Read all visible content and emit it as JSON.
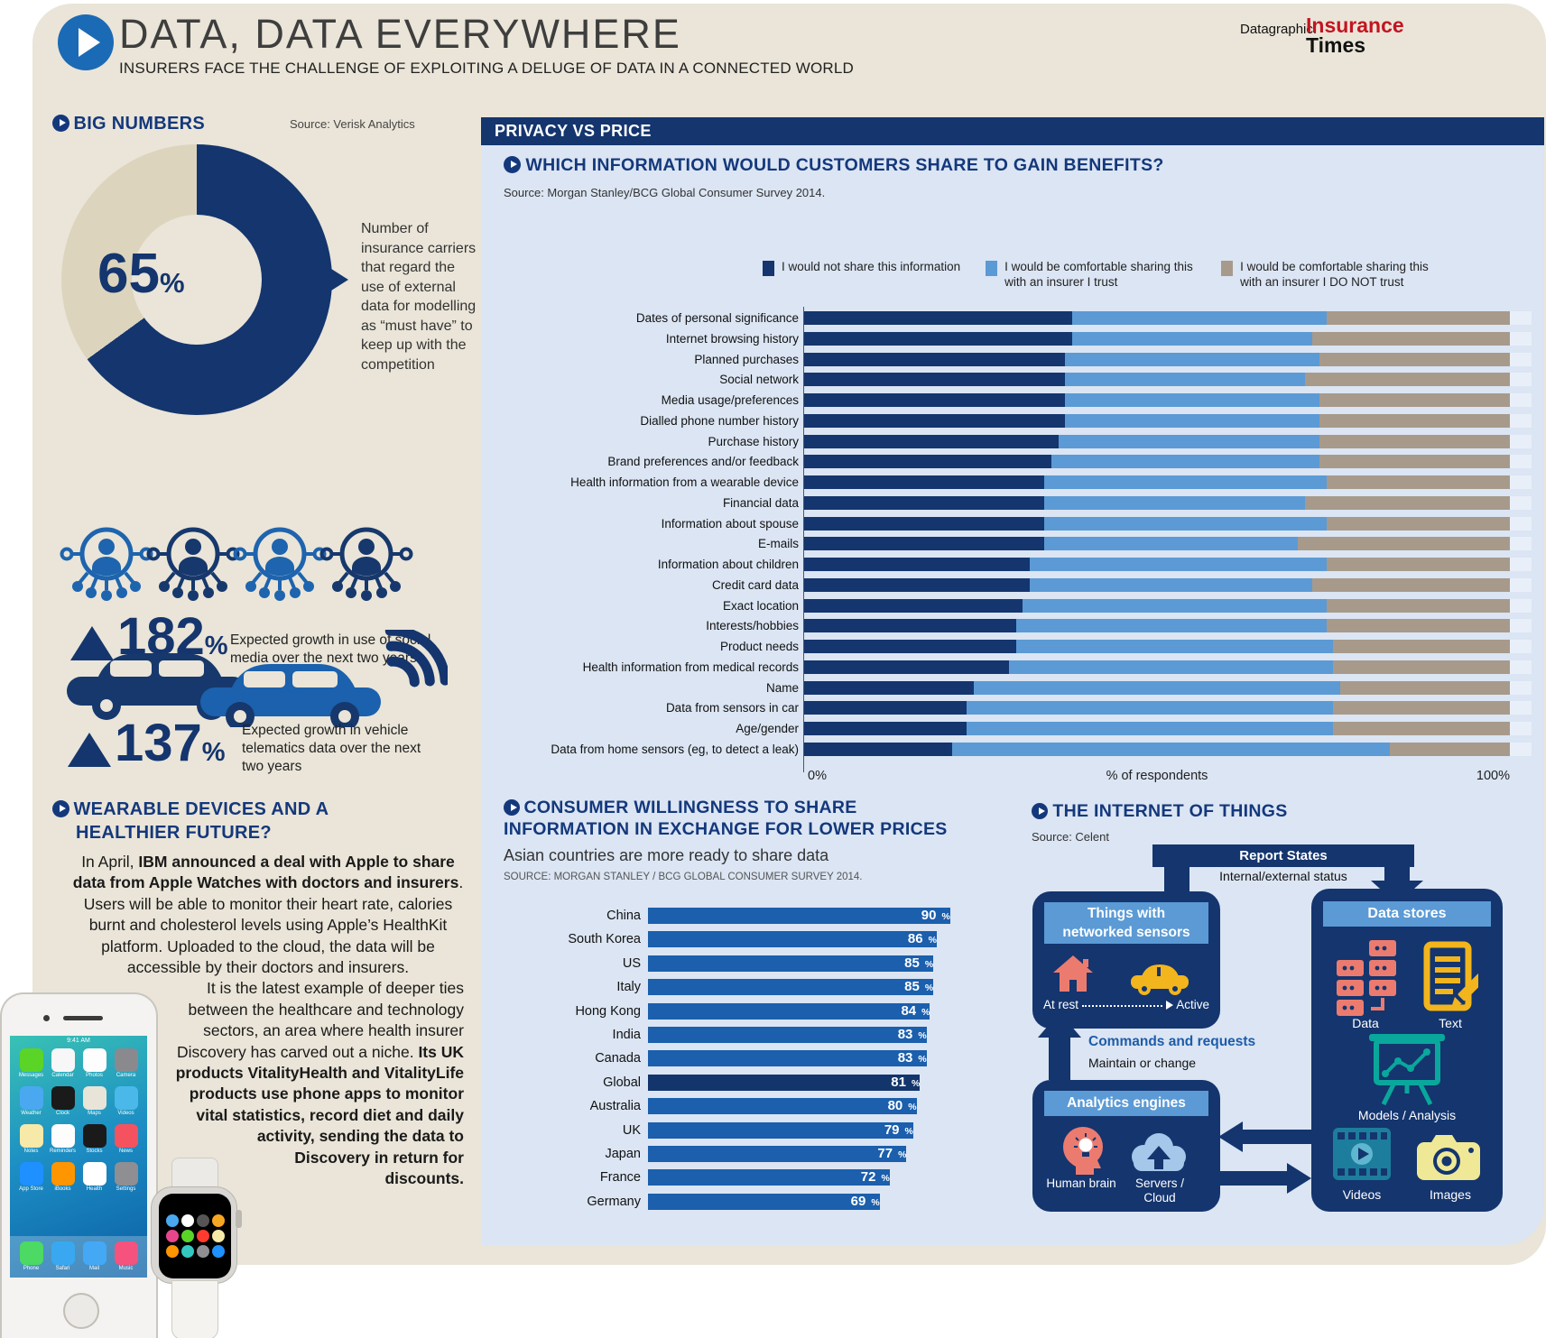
{
  "header": {
    "title": "DATA, DATA EVERYWHERE",
    "subtitle": "INSURERS FACE THE CHALLENGE OF EXPLOITING A DELUGE OF DATA IN A CONNECTED WORLD",
    "datagraphic_label": "Datagraphic:",
    "brand": {
      "line1": "Insurance",
      "line2": "Times"
    }
  },
  "big_numbers": {
    "heading": "BIG NUMBERS",
    "source": "Source: Verisk Analytics",
    "donut": {
      "value": "65",
      "unit": "%",
      "description": "Number of insurance carriers that regard the use of external data for modelling as “must have” to keep up with the competition"
    },
    "social": {
      "value": "182",
      "unit": "%",
      "description": "Expected growth in use of social media over the next two years"
    },
    "telematics": {
      "value": "137",
      "unit": "%",
      "description": "Expected growth in vehicle telematics data over the next two years"
    }
  },
  "wearable": {
    "heading_line1": "WEARABLE DEVICES AND A",
    "heading_line2": "HEALTHIER FUTURE?",
    "p1a": "In April, ",
    "p1b": "IBM announced a deal with Apple to share data from Apple Watches with doctors and insurers",
    "p1c": ". Users will be able to monitor their heart rate, calories burnt and cholesterol levels using Apple’s HealthKit platform. Uploaded to the cloud, the data will be accessible by their doctors and insurers.",
    "p2a": "It is the latest example of deeper ties between the healthcare and technology sectors, an area where health insurer Discovery has carved out a niche. ",
    "p2b": "Its UK products VitalityHealth and VitalityLife products use phone apps to monitor vital statistics, record diet and daily activity, sending the data to Discovery in return for discounts."
  },
  "phone": {
    "status_time": "9:41 AM",
    "apps": [
      {
        "label": "Messages",
        "color": "#5ad427"
      },
      {
        "label": "Calendar",
        "color": "#f7f7f7"
      },
      {
        "label": "Photos",
        "color": "#fdfdfd"
      },
      {
        "label": "Camera",
        "color": "#8a8a8e"
      },
      {
        "label": "Weather",
        "color": "#4aa8f0"
      },
      {
        "label": "Clock",
        "color": "#1a1a1a"
      },
      {
        "label": "Maps",
        "color": "#e8e4d8"
      },
      {
        "label": "Videos",
        "color": "#4ab8e8"
      },
      {
        "label": "Notes",
        "color": "#f7e9a8"
      },
      {
        "label": "Reminders",
        "color": "#fdfdfd"
      },
      {
        "label": "Stocks",
        "color": "#1a1a1a"
      },
      {
        "label": "News",
        "color": "#f5525f"
      },
      {
        "label": "App Store",
        "color": "#1e90ff"
      },
      {
        "label": "iBooks",
        "color": "#ff9500"
      },
      {
        "label": "Health",
        "color": "#ffffff"
      },
      {
        "label": "Settings",
        "color": "#8e8e93"
      }
    ],
    "dock": [
      {
        "label": "Phone",
        "color": "#4cd964"
      },
      {
        "label": "Safari",
        "color": "#3aa8f0"
      },
      {
        "label": "Mail",
        "color": "#44a8f5"
      },
      {
        "label": "Music",
        "color": "#f5527d"
      }
    ]
  },
  "privacy_panel": {
    "banner": "PRIVACY VS PRICE",
    "heading": "WHICH INFORMATION WOULD CUSTOMERS SHARE TO GAIN BENEFITS?",
    "source": "Source: Morgan Stanley/BCG Global Consumer Survey 2014.",
    "legend": [
      {
        "label": "I would not share this information",
        "color": "#14356e"
      },
      {
        "label": "I would be comfortable sharing this with an insurer I trust",
        "color": "#5b9ad5"
      },
      {
        "label": "I would be comfortable sharing this with an insurer I DO NOT trust",
        "color": "#a79a8b"
      }
    ],
    "axis": {
      "left": "0%",
      "center": "% of respondents",
      "right": "100%"
    }
  },
  "willingness": {
    "heading_line1": "CONSUMER WILLINGNESS TO SHARE",
    "heading_line2": "INFORMATION IN EXCHANGE FOR LOWER PRICES",
    "subtitle": "Asian countries are more ready to share data",
    "source": "SOURCE: MORGAN STANLEY / BCG GLOBAL CONSUMER SURVEY 2014."
  },
  "iot": {
    "heading": "THE INTERNET OF THINGS",
    "source": "Source: Celent",
    "report_states": {
      "label": "Report States",
      "sub": "Internal/external status"
    },
    "commands": {
      "label": "Commands and requests",
      "sub": "Maintain or change"
    },
    "things": {
      "title_line1": "Things with",
      "title_line2": "networked sensors",
      "at_rest": "At rest",
      "active": "Active"
    },
    "analytics": {
      "title": "Analytics engines",
      "items": [
        "Human brain",
        "Servers / Cloud"
      ]
    },
    "data_stores": {
      "title": "Data stores",
      "items": [
        "Data",
        "Text",
        "Models / Analysis",
        "Videos",
        "Images"
      ]
    }
  },
  "chart_data": [
    {
      "id": "big-number-donut",
      "type": "pie",
      "title": "BIG NUMBERS",
      "labels": [
        "Carriers regarding external data as must-have",
        "Other carriers"
      ],
      "values": [
        65,
        35
      ],
      "colors": [
        "#14356e",
        "#ddd4bd"
      ],
      "center_label": "65%"
    },
    {
      "id": "privacy-share-stacked",
      "type": "bar",
      "stacked": true,
      "title": "WHICH INFORMATION WOULD CUSTOMERS SHARE TO GAIN BENEFITS?",
      "xlabel": "% of respondents",
      "xlim": [
        0,
        100
      ],
      "legend_position": "top",
      "categories": [
        "Dates of personal significance",
        "Internet browsing history",
        "Planned purchases",
        "Social network",
        "Media usage/preferences",
        "Dialled phone number history",
        "Purchase history",
        "Brand preferences and/or feedback",
        "Health information from a wearable device",
        "Financial data",
        "Information about spouse",
        "E-mails",
        "Information about children",
        "Credit card data",
        "Exact location",
        "Interests/hobbies",
        "Product needs",
        "Health information from medical records",
        "Name",
        "Data from sensors in car",
        "Age/gender",
        "Data from home sensors (eg, to detect a leak)"
      ],
      "series": [
        {
          "name": "I would not share this information",
          "color": "#14356e",
          "values": [
            38,
            38,
            37,
            37,
            37,
            37,
            36,
            35,
            34,
            34,
            34,
            34,
            32,
            32,
            31,
            30,
            30,
            29,
            24,
            23,
            23,
            21
          ]
        },
        {
          "name": "I would be comfortable sharing this with an insurer I trust",
          "color": "#5b9ad5",
          "values": [
            36,
            34,
            36,
            34,
            36,
            36,
            37,
            38,
            40,
            37,
            40,
            36,
            42,
            40,
            43,
            44,
            45,
            46,
            52,
            52,
            52,
            62
          ]
        },
        {
          "name": "I would be comfortable sharing this with an insurer I DO NOT trust",
          "color": "#a79a8b",
          "values": [
            26,
            28,
            27,
            29,
            27,
            27,
            27,
            27,
            26,
            29,
            26,
            30,
            26,
            28,
            26,
            26,
            25,
            25,
            24,
            25,
            25,
            17
          ]
        }
      ]
    },
    {
      "id": "willingness-bar",
      "type": "bar",
      "title": "CONSUMER WILLINGNESS TO SHARE INFORMATION IN EXCHANGE FOR LOWER PRICES",
      "categories": [
        "China",
        "South Korea",
        "US",
        "Italy",
        "Hong Kong",
        "India",
        "Canada",
        "Global",
        "Australia",
        "UK",
        "Japan",
        "France",
        "Germany"
      ],
      "values": [
        90,
        86,
        85,
        85,
        84,
        83,
        83,
        81,
        80,
        79,
        77,
        72,
        69
      ],
      "unit": "%",
      "xlim": [
        0,
        100
      ],
      "bar_color": "#1b5fad",
      "highlight_category": "Global",
      "highlight_color": "#12356b"
    }
  ]
}
